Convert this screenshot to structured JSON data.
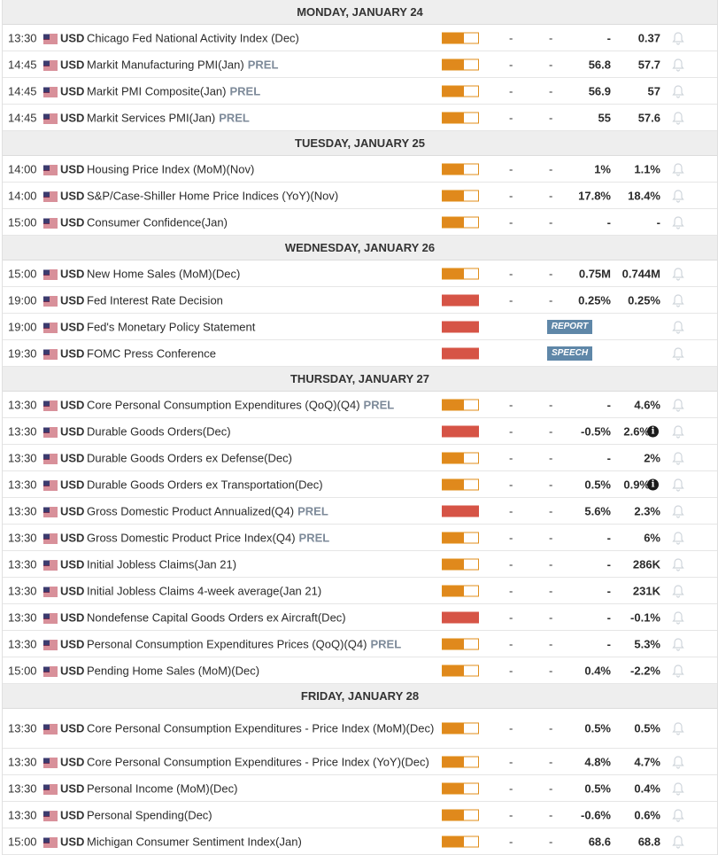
{
  "colors": {
    "medium": "#e0891c",
    "high": "#d65446",
    "tag": "#5f87a8"
  },
  "icons": {
    "flag": "us-flag-icon",
    "bell": "bell-icon",
    "info": "info-icon"
  },
  "days": [
    {
      "title": "MONDAY, JANUARY 24",
      "events": [
        {
          "time": "13:30",
          "currency": "USD",
          "event": "Chicago Fed National Activity Index (Dec)",
          "prel": "",
          "impact": "medium",
          "c1": "-",
          "c2": "-",
          "c3": "-",
          "c4": "0.37"
        },
        {
          "time": "14:45",
          "currency": "USD",
          "event": "Markit Manufacturing PMI(Jan)",
          "prel": "PREL",
          "impact": "medium",
          "c1": "-",
          "c2": "-",
          "c3": "56.8",
          "c4": "57.7"
        },
        {
          "time": "14:45",
          "currency": "USD",
          "event": "Markit PMI Composite(Jan)",
          "prel": "PREL",
          "impact": "medium",
          "c1": "-",
          "c2": "-",
          "c3": "56.9",
          "c4": "57"
        },
        {
          "time": "14:45",
          "currency": "USD",
          "event": "Markit Services PMI(Jan)",
          "prel": "PREL",
          "impact": "medium",
          "c1": "-",
          "c2": "-",
          "c3": "55",
          "c4": "57.6"
        }
      ]
    },
    {
      "title": "TUESDAY, JANUARY 25",
      "events": [
        {
          "time": "14:00",
          "currency": "USD",
          "event": "Housing Price Index (MoM)(Nov)",
          "prel": "",
          "impact": "medium",
          "c1": "-",
          "c2": "-",
          "c3": "1%",
          "c4": "1.1%"
        },
        {
          "time": "14:00",
          "currency": "USD",
          "event": "S&P/Case-Shiller Home Price Indices (YoY)(Nov)",
          "prel": "",
          "impact": "medium",
          "c1": "-",
          "c2": "-",
          "c3": "17.8%",
          "c4": "18.4%"
        },
        {
          "time": "15:00",
          "currency": "USD",
          "event": "Consumer Confidence(Jan)",
          "prel": "",
          "impact": "medium",
          "c1": "-",
          "c2": "-",
          "c3": "-",
          "c4": "-"
        }
      ]
    },
    {
      "title": "WEDNESDAY, JANUARY 26",
      "events": [
        {
          "time": "15:00",
          "currency": "USD",
          "event": "New Home Sales (MoM)(Dec)",
          "prel": "",
          "impact": "medium",
          "c1": "-",
          "c2": "-",
          "c3": "0.75M",
          "c4": "0.744M"
        },
        {
          "time": "19:00",
          "currency": "USD",
          "event": "Fed Interest Rate Decision",
          "prel": "",
          "impact": "high",
          "c1": "-",
          "c2": "-",
          "c3": "0.25%",
          "c4": "0.25%"
        },
        {
          "time": "19:00",
          "currency": "USD",
          "event": "Fed's Monetary Policy Statement",
          "prel": "",
          "impact": "high",
          "tag": "REPORT"
        },
        {
          "time": "19:30",
          "currency": "USD",
          "event": "FOMC Press Conference",
          "prel": "",
          "impact": "high",
          "tag": "SPEECH"
        }
      ]
    },
    {
      "title": "THURSDAY, JANUARY 27",
      "events": [
        {
          "time": "13:30",
          "currency": "USD",
          "event": "Core Personal Consumption Expenditures (QoQ)(Q4)",
          "prel": "PREL",
          "impact": "medium",
          "c1": "-",
          "c2": "-",
          "c3": "-",
          "c4": "4.6%"
        },
        {
          "time": "13:30",
          "currency": "USD",
          "event": "Durable Goods Orders(Dec)",
          "prel": "",
          "impact": "high",
          "c1": "-",
          "c2": "-",
          "c3": "-0.5%",
          "c4": "2.6%",
          "info": true
        },
        {
          "time": "13:30",
          "currency": "USD",
          "event": "Durable Goods Orders ex Defense(Dec)",
          "prel": "",
          "impact": "medium",
          "c1": "-",
          "c2": "-",
          "c3": "-",
          "c4": "2%"
        },
        {
          "time": "13:30",
          "currency": "USD",
          "event": "Durable Goods Orders ex Transportation(Dec)",
          "prel": "",
          "impact": "medium",
          "c1": "-",
          "c2": "-",
          "c3": "0.5%",
          "c4": "0.9%",
          "info": true
        },
        {
          "time": "13:30",
          "currency": "USD",
          "event": "Gross Domestic Product Annualized(Q4)",
          "prel": "PREL",
          "impact": "high",
          "c1": "-",
          "c2": "-",
          "c3": "5.6%",
          "c4": "2.3%"
        },
        {
          "time": "13:30",
          "currency": "USD",
          "event": "Gross Domestic Product Price Index(Q4)",
          "prel": "PREL",
          "impact": "medium",
          "c1": "-",
          "c2": "-",
          "c3": "-",
          "c4": "6%"
        },
        {
          "time": "13:30",
          "currency": "USD",
          "event": "Initial Jobless Claims(Jan 21)",
          "prel": "",
          "impact": "medium",
          "c1": "-",
          "c2": "-",
          "c3": "-",
          "c4": "286K"
        },
        {
          "time": "13:30",
          "currency": "USD",
          "event": "Initial Jobless Claims 4-week average(Jan 21)",
          "prel": "",
          "impact": "medium",
          "c1": "-",
          "c2": "-",
          "c3": "-",
          "c4": "231K"
        },
        {
          "time": "13:30",
          "currency": "USD",
          "event": "Nondefense Capital Goods Orders ex Aircraft(Dec)",
          "prel": "",
          "impact": "high",
          "c1": "-",
          "c2": "-",
          "c3": "-",
          "c4": "-0.1%"
        },
        {
          "time": "13:30",
          "currency": "USD",
          "event": "Personal Consumption Expenditures Prices (QoQ)(Q4)",
          "prel": "PREL",
          "impact": "medium",
          "c1": "-",
          "c2": "-",
          "c3": "-",
          "c4": "5.3%"
        },
        {
          "time": "15:00",
          "currency": "USD",
          "event": "Pending Home Sales (MoM)(Dec)",
          "prel": "",
          "impact": "medium",
          "c1": "-",
          "c2": "-",
          "c3": "0.4%",
          "c4": "-2.2%"
        }
      ]
    },
    {
      "title": "FRIDAY, JANUARY 28",
      "events": [
        {
          "time": "13:30",
          "currency": "USD",
          "event": "Core Personal Consumption Expenditures - Price Index (MoM)(Dec)",
          "prel": "",
          "impact": "medium",
          "c1": "-",
          "c2": "-",
          "c3": "0.5%",
          "c4": "0.5%",
          "tall": true
        },
        {
          "time": "13:30",
          "currency": "USD",
          "event": "Core Personal Consumption Expenditures - Price Index (YoY)(Dec)",
          "prel": "",
          "impact": "medium",
          "c1": "-",
          "c2": "-",
          "c3": "4.8%",
          "c4": "4.7%"
        },
        {
          "time": "13:30",
          "currency": "USD",
          "event": "Personal Income (MoM)(Dec)",
          "prel": "",
          "impact": "medium",
          "c1": "-",
          "c2": "-",
          "c3": "0.5%",
          "c4": "0.4%"
        },
        {
          "time": "13:30",
          "currency": "USD",
          "event": "Personal Spending(Dec)",
          "prel": "",
          "impact": "medium",
          "c1": "-",
          "c2": "-",
          "c3": "-0.6%",
          "c4": "0.6%"
        },
        {
          "time": "15:00",
          "currency": "USD",
          "event": "Michigan Consumer Sentiment Index(Jan)",
          "prel": "",
          "impact": "medium",
          "c1": "-",
          "c2": "-",
          "c3": "68.6",
          "c4": "68.8"
        }
      ]
    }
  ]
}
